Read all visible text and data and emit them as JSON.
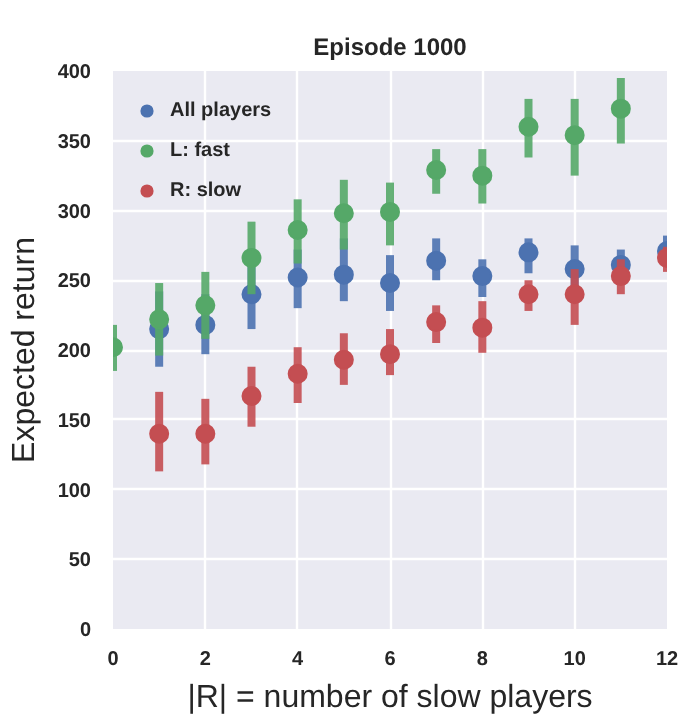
{
  "chart_data": {
    "type": "scatter",
    "title": "Episode 1000",
    "xlabel": "|R| = number of slow players",
    "ylabel": "Expected return",
    "x": [
      0,
      1,
      2,
      3,
      4,
      5,
      6,
      7,
      8,
      9,
      10,
      11,
      12
    ],
    "xlim": [
      0,
      12
    ],
    "xticks": [
      0,
      2,
      4,
      6,
      8,
      10,
      12
    ],
    "ylim": [
      0,
      400
    ],
    "yticks": [
      0,
      50,
      100,
      150,
      200,
      250,
      300,
      350,
      400
    ],
    "grid": true,
    "legend": "top left",
    "marker": "circle",
    "series": [
      {
        "name": "All players",
        "color": "#4c72b0",
        "values": [
          null,
          215,
          218,
          240,
          252,
          254,
          248,
          264,
          253,
          270,
          258,
          261,
          271
        ],
        "errors": [
          null,
          [
            188,
            242
          ],
          [
            197,
            240
          ],
          [
            215,
            265
          ],
          [
            230,
            272
          ],
          [
            235,
            280
          ],
          [
            228,
            268
          ],
          [
            250,
            280
          ],
          [
            238,
            265
          ],
          [
            255,
            280
          ],
          [
            245,
            275
          ],
          [
            250,
            272
          ],
          [
            262,
            282
          ]
        ]
      },
      {
        "name": "L: fast",
        "color": "#55a868",
        "values": [
          202,
          222,
          232,
          266,
          286,
          298,
          299,
          329,
          325,
          360,
          354,
          373,
          null
        ],
        "errors": [
          [
            185,
            218
          ],
          [
            196,
            248
          ],
          [
            208,
            256
          ],
          [
            240,
            292
          ],
          [
            262,
            308
          ],
          [
            272,
            322
          ],
          [
            275,
            320
          ],
          [
            312,
            344
          ],
          [
            305,
            344
          ],
          [
            338,
            380
          ],
          [
            325,
            380
          ],
          [
            348,
            395
          ],
          null
        ]
      },
      {
        "name": "R: slow",
        "color": "#c44e52",
        "values": [
          null,
          140,
          140,
          167,
          183,
          193,
          197,
          220,
          216,
          240,
          240,
          253,
          266
        ],
        "errors": [
          null,
          [
            113,
            170
          ],
          [
            118,
            165
          ],
          [
            145,
            188
          ],
          [
            162,
            202
          ],
          [
            175,
            212
          ],
          [
            182,
            215
          ],
          [
            205,
            232
          ],
          [
            198,
            235
          ],
          [
            228,
            250
          ],
          [
            218,
            258
          ],
          [
            240,
            265
          ],
          [
            256,
            274
          ]
        ]
      }
    ]
  }
}
